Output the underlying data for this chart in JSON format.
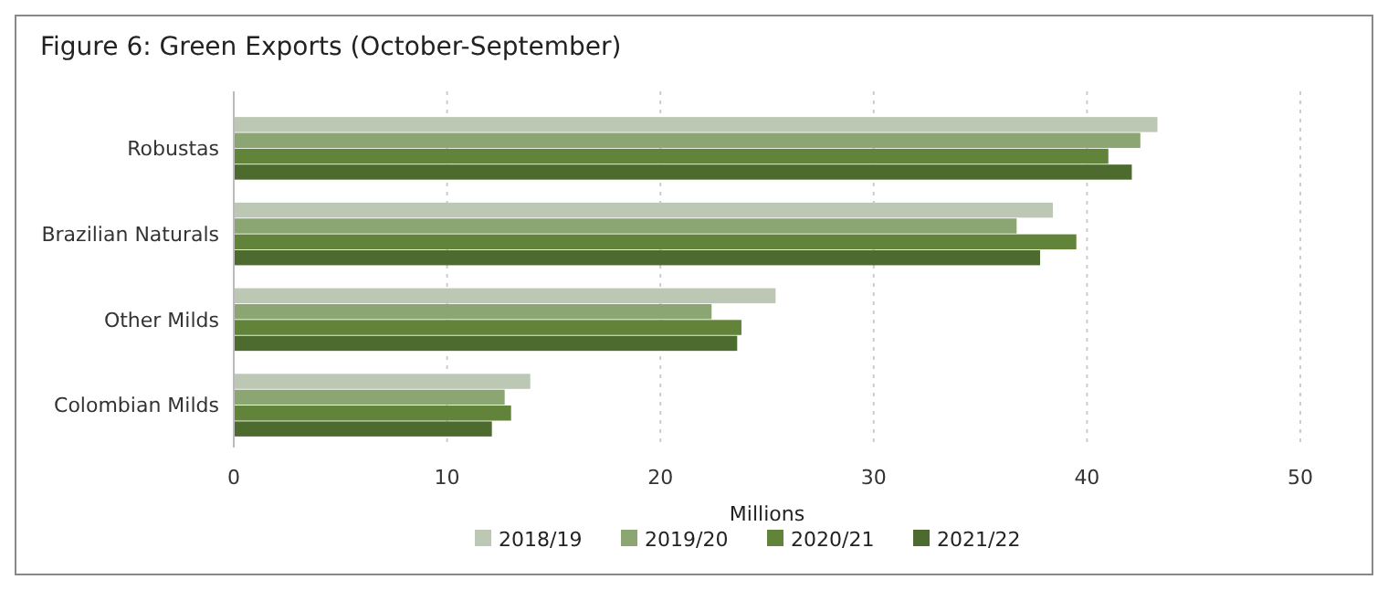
{
  "chart_data": {
    "type": "bar",
    "orientation": "horizontal",
    "title": "Figure 6: Green Exports (October-September)",
    "xlabel": "Millions",
    "categories": [
      "Robustas",
      "Brazilian Naturals",
      "Other Milds",
      "Colombian Milds"
    ],
    "series": [
      {
        "name": "2018/19",
        "color": "#bcc8b3",
        "values": [
          43.3,
          38.4,
          25.4,
          13.9
        ]
      },
      {
        "name": "2019/20",
        "color": "#8ba672",
        "values": [
          42.5,
          36.7,
          22.4,
          12.7
        ]
      },
      {
        "name": "2020/21",
        "color": "#62843a",
        "values": [
          41.0,
          39.5,
          23.8,
          13.0
        ]
      },
      {
        "name": "2021/22",
        "color": "#4d6b2e",
        "values": [
          42.1,
          37.8,
          23.6,
          12.1
        ]
      }
    ],
    "xlim": [
      0,
      50
    ],
    "xticks": [
      0,
      10,
      20,
      30,
      40,
      50
    ],
    "grid": "x",
    "legend": "bottom"
  }
}
